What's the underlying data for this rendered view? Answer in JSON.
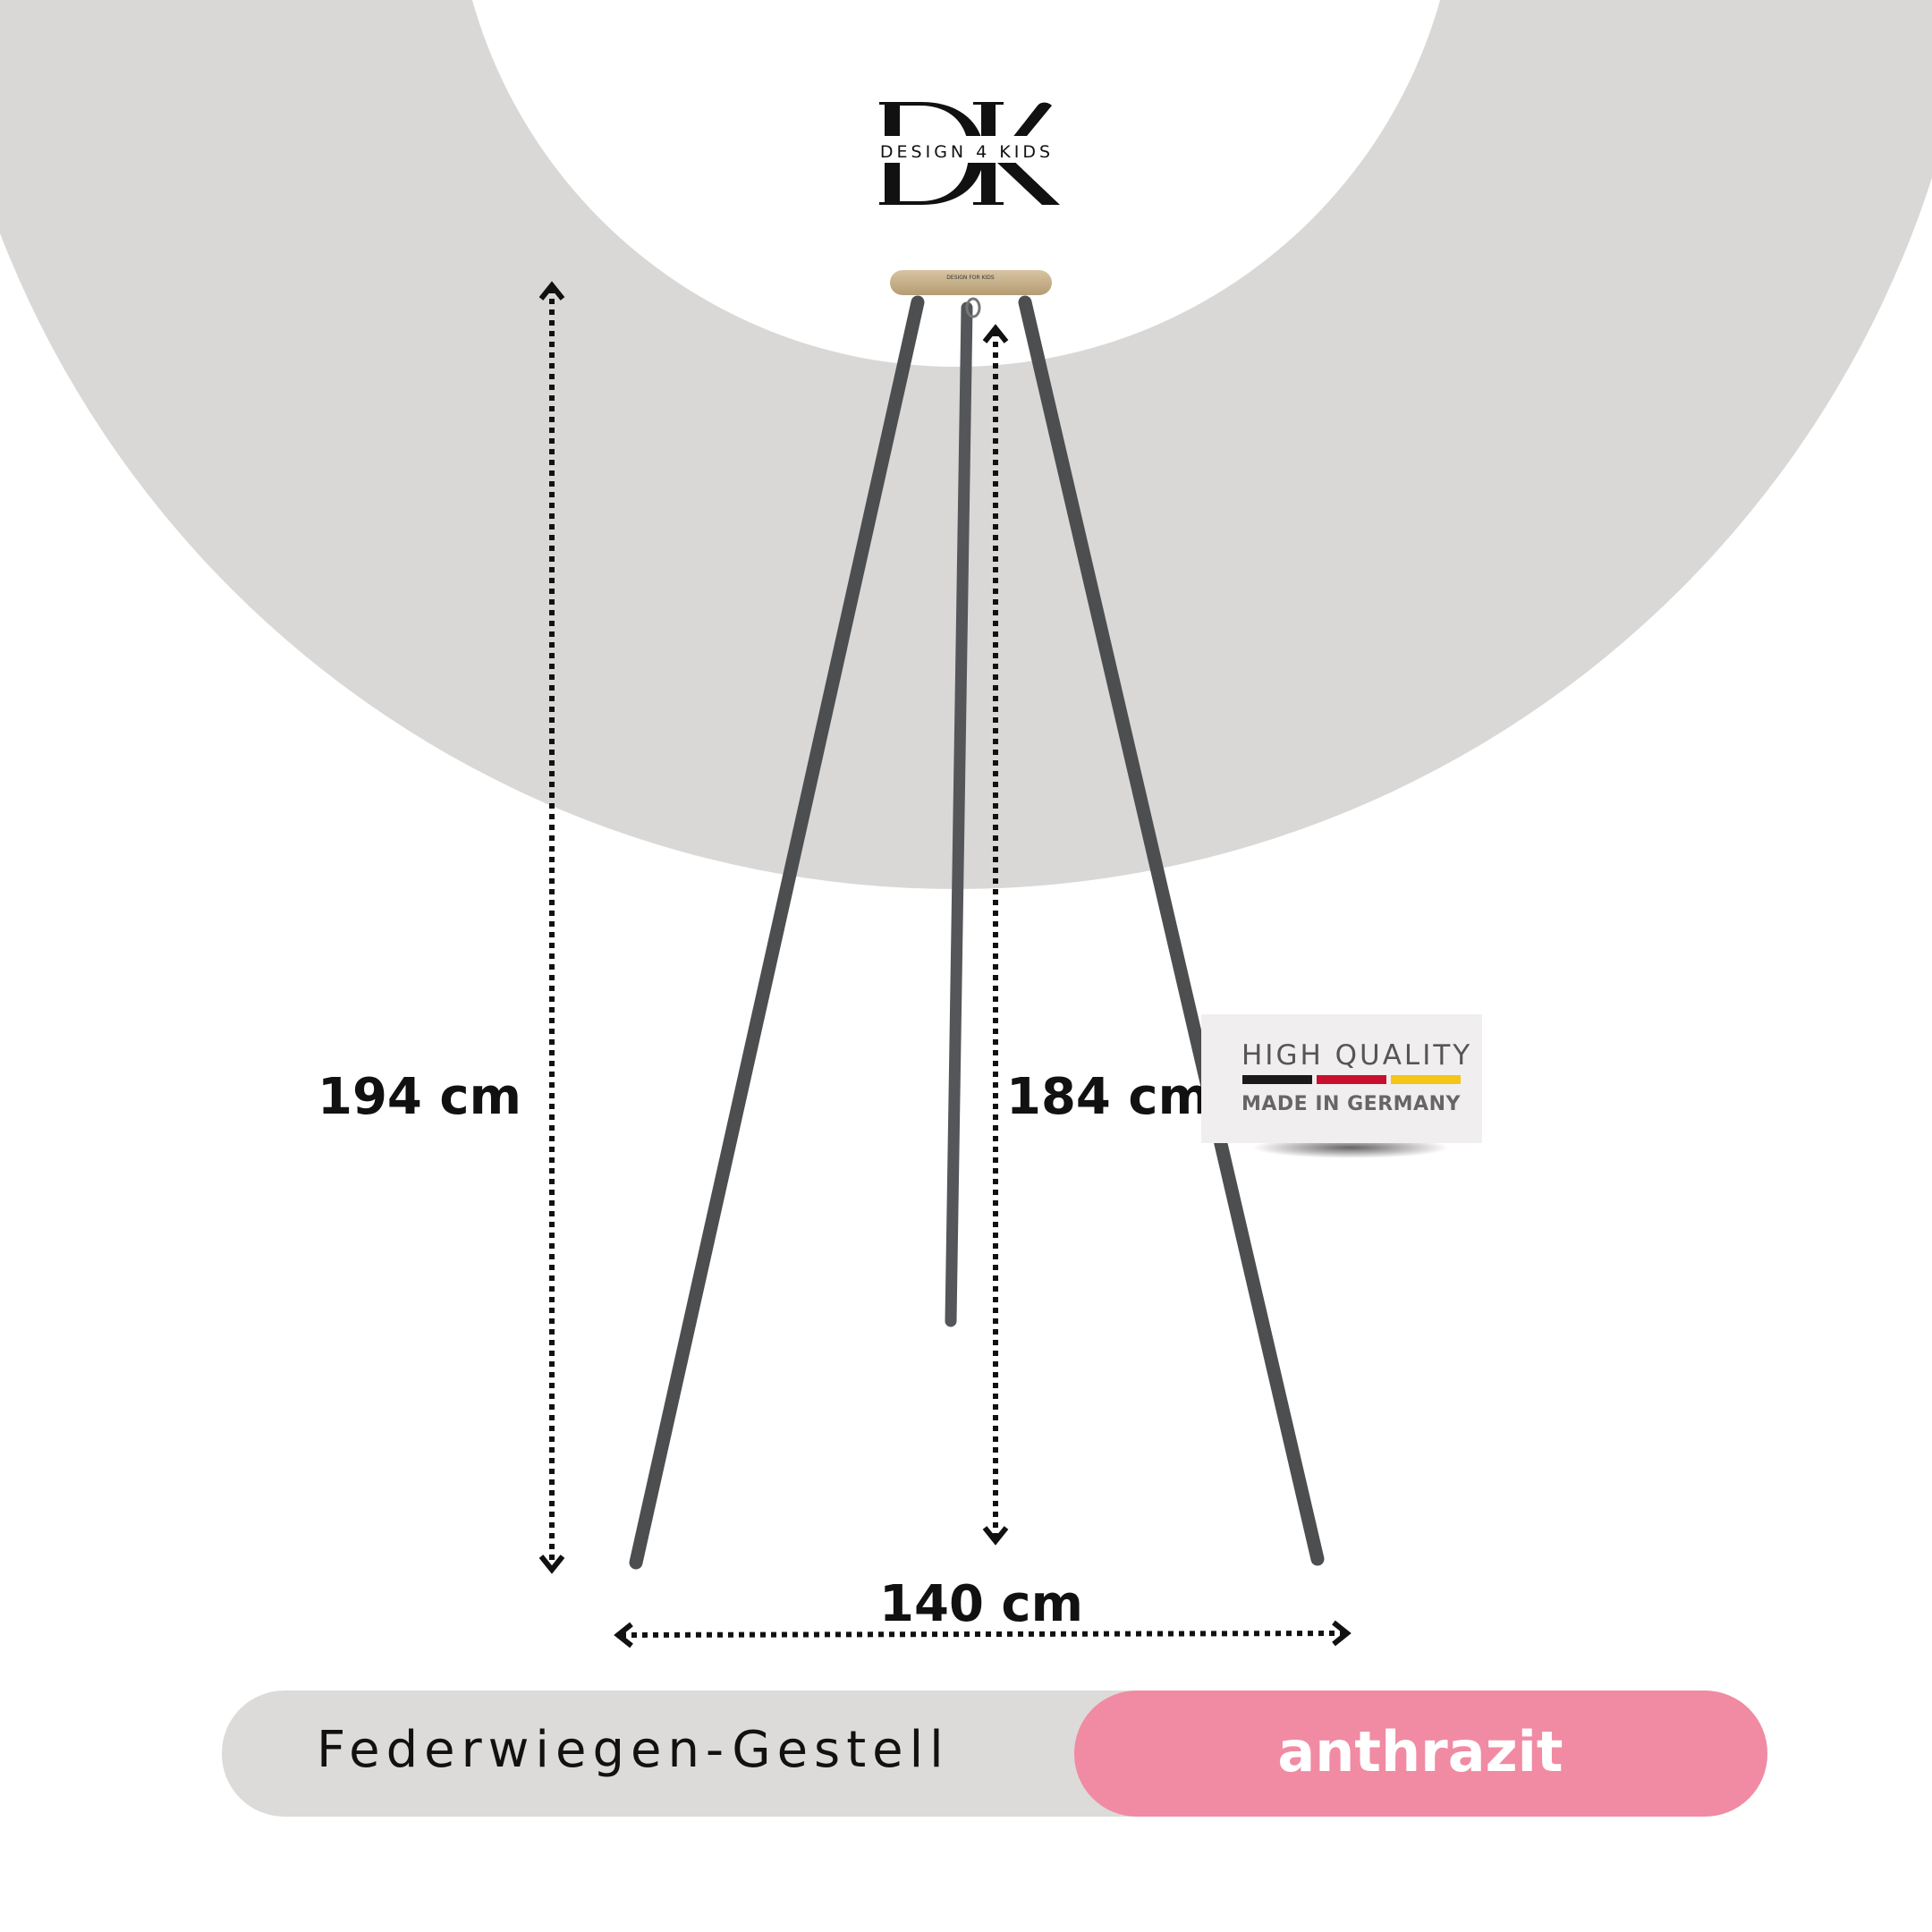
{
  "logo": {
    "monogram": "DK",
    "brand": "DESIGN 4 KIDS"
  },
  "plate_engraving": "DESIGN FOR KIDS",
  "dimensions": {
    "total_height": "194 cm",
    "hook_height": "184 cm",
    "width": "140 cm"
  },
  "badge": {
    "title": "HIGH QUALITY",
    "subtitle": "MADE IN GERMANY",
    "flag_colors": [
      "#1a1a1a",
      "#c8102e",
      "#f5c518"
    ]
  },
  "product": {
    "name": "Federwiegen-Gestell",
    "color_variant": "anthrazit"
  },
  "colors": {
    "background_ring": "#d9d8d6",
    "accent": "#f08ba3",
    "pill": "#dcdbda",
    "leg": "#5a5b5d"
  }
}
